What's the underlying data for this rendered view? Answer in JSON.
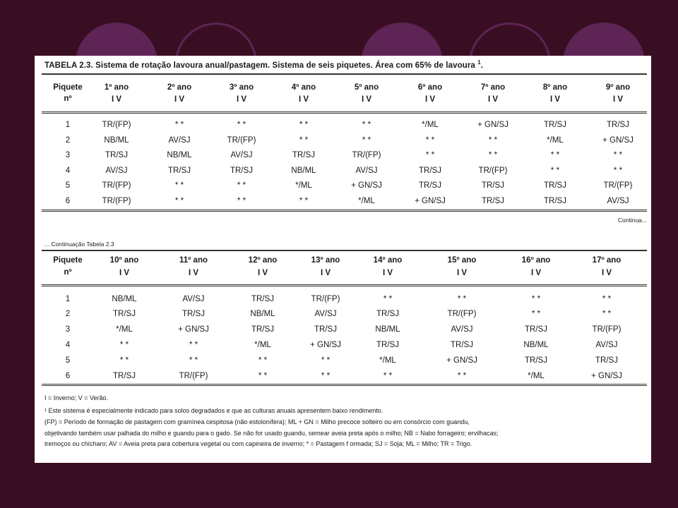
{
  "table1": {
    "title": "TABELA 2.3. Sistema de rotação lavoura anual/pastagem. Sistema de seis piquetes. Área com 65% de lavoura",
    "title_sup": "1",
    "title_end": ".",
    "piquete_label": "Piquete",
    "piquete_sub": "nº",
    "iv_label": "I   V",
    "years": [
      "1º ano",
      "2º ano",
      "3º ano",
      "4º ano",
      "5º ano",
      "6º ano",
      "7º ano",
      "8º ano",
      "9º ano"
    ],
    "rows": [
      {
        "n": "1",
        "cells": [
          "TR/(FP)",
          "*  *",
          "*  *",
          "*  *",
          "*  *",
          "*/ML",
          "+ GN/SJ",
          "TR/SJ",
          "TR/SJ"
        ]
      },
      {
        "n": "2",
        "cells": [
          "NB/ML",
          "AV/SJ",
          "TR/(FP)",
          "*  *",
          "*  *",
          "*  *",
          "*  *",
          "*/ML",
          "+ GN/SJ"
        ]
      },
      {
        "n": "3",
        "cells": [
          "TR/SJ",
          "NB/ML",
          "AV/SJ",
          "TR/SJ",
          "TR/(FP)",
          "*  *",
          "*  *",
          "*  *",
          "*  *"
        ]
      },
      {
        "n": "4",
        "cells": [
          "AV/SJ",
          "TR/SJ",
          "TR/SJ",
          "NB/ML",
          "AV/SJ",
          "TR/SJ",
          "TR/(FP)",
          "*  *",
          "*  *"
        ]
      },
      {
        "n": "5",
        "cells": [
          "TR/(FP)",
          "*  *",
          "*  *",
          "*/ML",
          "+ GN/SJ",
          "TR/SJ",
          "TR/SJ",
          "TR/SJ",
          "TR/(FP)"
        ]
      },
      {
        "n": "6",
        "cells": [
          "TR/(FP)",
          "*  *",
          "*  *",
          "*  *",
          "*/ML",
          "+ GN/SJ",
          "TR/SJ",
          "TR/SJ",
          "AV/SJ"
        ]
      }
    ],
    "continua": "Continua..."
  },
  "table2": {
    "continuacao": "... Continuação Tabela 2.3",
    "piquete_label": "Piquete",
    "piquete_sub": "nº",
    "iv_label": "I   V",
    "years": [
      "10º ano",
      "11º ano",
      "12º ano",
      "13º ano",
      "14º ano",
      "15º ano",
      "16º ano",
      "17º ano"
    ],
    "rows": [
      {
        "n": "1",
        "cells": [
          "NB/ML",
          "AV/SJ",
          "TR/SJ",
          "TR/(FP)",
          "*  *",
          "*  *",
          "*  *",
          "*  *"
        ]
      },
      {
        "n": "2",
        "cells": [
          "TR/SJ",
          "TR/SJ",
          "NB/ML",
          "AV/SJ",
          "TR/SJ",
          "TR/(FP)",
          "*  *",
          "*  *"
        ]
      },
      {
        "n": "3",
        "cells": [
          "*/ML",
          "+ GN/SJ",
          "TR/SJ",
          "TR/SJ",
          "NB/ML",
          "AV/SJ",
          "TR/SJ",
          "TR/(FP)"
        ]
      },
      {
        "n": "4",
        "cells": [
          "*  *",
          "*  *",
          "*/ML",
          "+ GN/SJ",
          "TR/SJ",
          "TR/SJ",
          "NB/ML",
          "AV/SJ"
        ]
      },
      {
        "n": "5",
        "cells": [
          "*  *",
          "*  *",
          "*  *",
          "*  *",
          "*/ML",
          "+ GN/SJ",
          "TR/SJ",
          "TR/SJ"
        ]
      },
      {
        "n": "6",
        "cells": [
          "TR/SJ",
          "TR/(FP)",
          "*  *",
          "*  *",
          "*  *",
          "*  *",
          "*/ML",
          "+ GN/SJ"
        ]
      }
    ]
  },
  "notes": [
    "I = Inverno; V = Verão.",
    "¹  Este sistema é especialmente indicado para solos degradados e que as culturas anuais apresentem baixo rendimento.",
    "(FP) = Período de formação de pastagem com gramínea cespitosa (não estolonífera); ML + GN = Milho precoce solteiro ou em consórcio com guandu,",
    "objetivando também usar palhada do milho e guandu para o gado. Se não for usado guandu, semear aveia preta após o milho; NB = Nabo forrageiro; ervilhacas;",
    "tremoços ou chícharo; AV = Aveia preta para cobertura vegetal ou com capineira de inverno; * = Pastagem f  ormada; SJ = Soja; ML = Milho; TR = Trigo."
  ]
}
